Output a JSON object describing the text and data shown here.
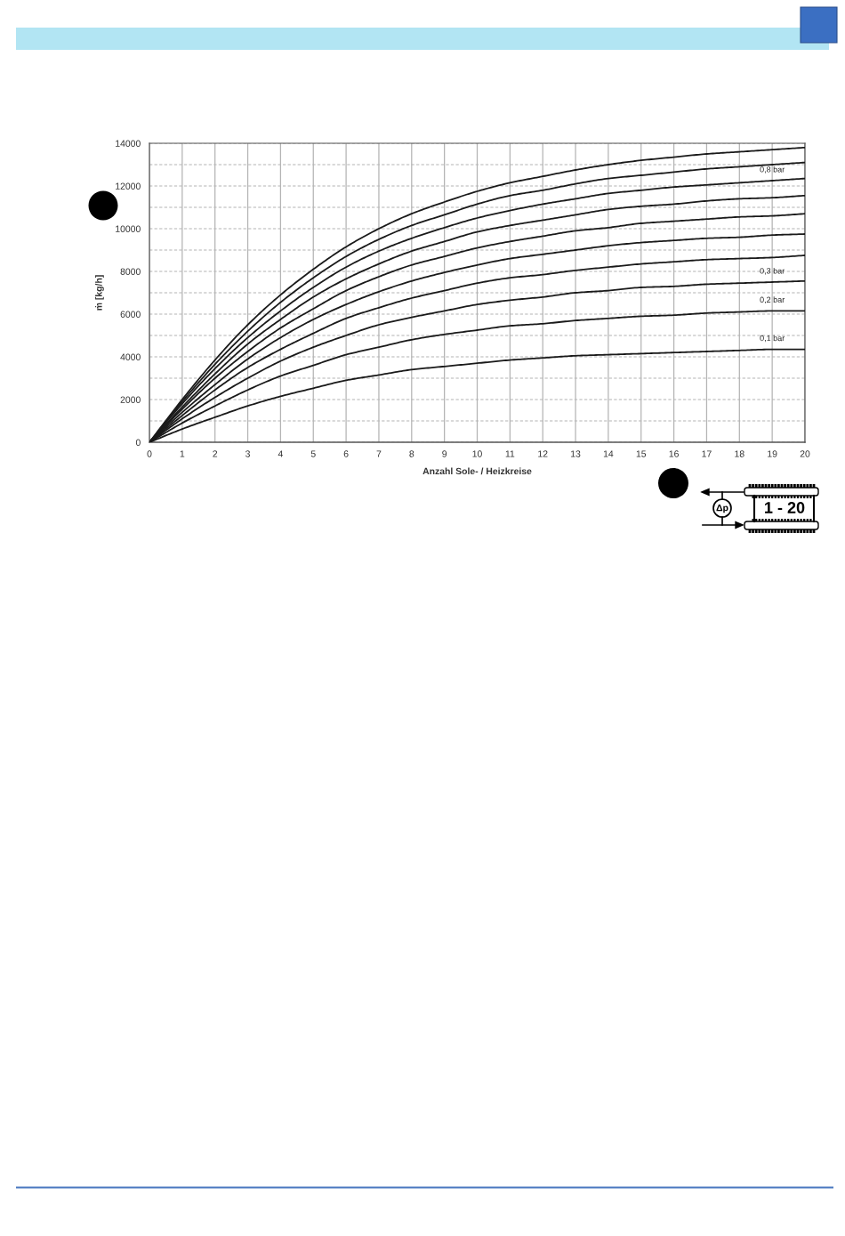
{
  "chart_data": {
    "type": "line",
    "xlabel": "Anzahl Sole- / Heizkreise",
    "ylabel": "ṁ [kg/h]",
    "annotations": [
      "Δp",
      "1 - 20"
    ],
    "x": [
      0,
      1,
      2,
      3,
      4,
      5,
      6,
      7,
      8,
      9,
      10,
      11,
      12,
      13,
      14,
      15,
      16,
      17,
      18,
      19,
      20
    ],
    "series": [
      {
        "name": "0,1 bar",
        "color": "#1a1a1a",
        "values": [
          0,
          620,
          1170,
          1700,
          2150,
          2530,
          2900,
          3150,
          3400,
          3550,
          3700,
          3850,
          3950,
          4050,
          4100,
          4150,
          4200,
          4250,
          4300,
          4350,
          4350
        ]
      },
      {
        "name": "0,2 bar",
        "color": "#1a1a1a",
        "values": [
          0,
          900,
          1700,
          2450,
          3100,
          3600,
          4100,
          4450,
          4800,
          5050,
          5250,
          5450,
          5550,
          5700,
          5800,
          5900,
          5950,
          6050,
          6100,
          6150,
          6150
        ]
      },
      {
        "name": "0,3 bar",
        "color": "#1a1a1a",
        "values": [
          0,
          1100,
          2100,
          3000,
          3800,
          4450,
          5000,
          5500,
          5850,
          6150,
          6450,
          6650,
          6800,
          7000,
          7100,
          7250,
          7300,
          7400,
          7450,
          7500,
          7550
        ]
      },
      {
        "color": "#1a1a1a",
        "values": [
          0,
          1250,
          2450,
          3500,
          4350,
          5100,
          5800,
          6300,
          6750,
          7100,
          7450,
          7700,
          7850,
          8050,
          8200,
          8350,
          8450,
          8550,
          8600,
          8650,
          8750
        ]
      },
      {
        "color": "#1a1a1a",
        "values": [
          0,
          1400,
          2700,
          3900,
          4900,
          5750,
          6450,
          7050,
          7550,
          7950,
          8300,
          8600,
          8800,
          9000,
          9200,
          9350,
          9450,
          9550,
          9600,
          9700,
          9750
        ]
      },
      {
        "color": "#1a1a1a",
        "values": [
          0,
          1550,
          3000,
          4250,
          5350,
          6250,
          7100,
          7750,
          8300,
          8700,
          9100,
          9400,
          9650,
          9900,
          10050,
          10250,
          10350,
          10450,
          10550,
          10600,
          10700
        ]
      },
      {
        "color": "#1a1a1a",
        "values": [
          0,
          1650,
          3200,
          4600,
          5750,
          6800,
          7650,
          8350,
          8950,
          9400,
          9850,
          10150,
          10400,
          10650,
          10900,
          11050,
          11150,
          11300,
          11400,
          11450,
          11550
        ]
      },
      {
        "name": "0,8 bar",
        "color": "#1a1a1a",
        "values": [
          0,
          1800,
          3450,
          4900,
          6150,
          7250,
          8200,
          8950,
          9550,
          10050,
          10500,
          10850,
          11150,
          11400,
          11650,
          11800,
          11950,
          12050,
          12150,
          12250,
          12350
        ]
      },
      {
        "color": "#1a1a1a",
        "values": [
          0,
          1900,
          3650,
          5200,
          6550,
          7700,
          8700,
          9500,
          10150,
          10650,
          11150,
          11550,
          11800,
          12100,
          12350,
          12500,
          12650,
          12800,
          12900,
          13000,
          13100
        ]
      },
      {
        "color": "#1a1a1a",
        "values": [
          0,
          2000,
          3850,
          5500,
          6900,
          8100,
          9150,
          10000,
          10700,
          11250,
          11750,
          12150,
          12450,
          12750,
          13000,
          13200,
          13350,
          13500,
          13600,
          13700,
          13800
        ]
      }
    ],
    "xlim": [
      0,
      20
    ],
    "xticks": [
      0,
      1,
      2,
      3,
      4,
      5,
      6,
      7,
      8,
      9,
      10,
      11,
      12,
      13,
      14,
      15,
      16,
      17,
      18,
      19,
      20
    ],
    "ylim": [
      0,
      14000
    ],
    "yticks": [
      0,
      {
        "value": 1000,
        "label": null
      },
      2000,
      {
        "value": 3000,
        "label": null
      },
      4000,
      {
        "value": 5000,
        "label": null
      },
      6000,
      {
        "value": 7000,
        "label": null
      },
      8000,
      {
        "value": 9000,
        "label": null
      },
      10000,
      {
        "value": 11000,
        "label": null
      },
      12000,
      {
        "value": 13000,
        "label": null
      },
      14000
    ],
    "grid": true,
    "marker": "none",
    "line_style": "solid"
  }
}
